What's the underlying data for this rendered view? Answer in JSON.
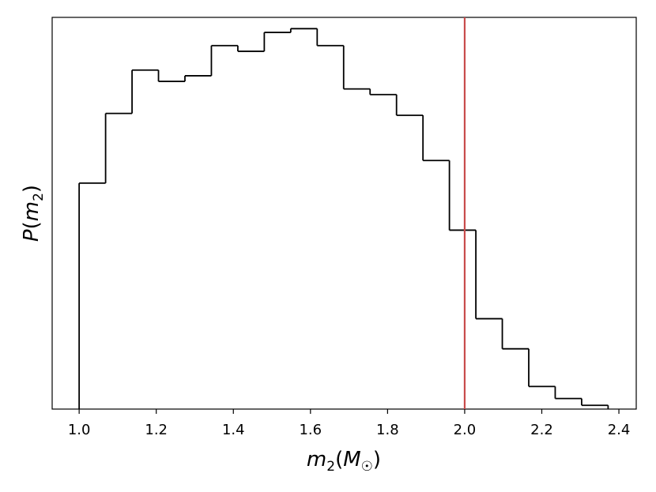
{
  "chart_data": {
    "type": "histogram",
    "xlabel": "m2(M☉)",
    "ylabel": "P(m2)",
    "xlim": [
      0.93,
      2.445
    ],
    "ylim": [
      0,
      1.04
    ],
    "x_ticks": [
      "1.0",
      "1.2",
      "1.4",
      "1.6",
      "1.8",
      "2.0",
      "2.2",
      "2.4"
    ],
    "y_ticks": [],
    "grid": false,
    "bin_edges": [
      1.0,
      1.0686,
      1.1372,
      1.2058,
      1.2744,
      1.343,
      1.4116,
      1.4802,
      1.5488,
      1.6174,
      1.686,
      1.7546,
      1.8232,
      1.8918,
      1.9604,
      2.029,
      2.0976,
      2.1662,
      2.2348,
      2.3034,
      2.372
    ],
    "bin_heights": [
      0.6,
      0.785,
      0.9,
      0.87,
      0.885,
      0.965,
      0.95,
      1.0,
      1.01,
      0.965,
      0.85,
      0.835,
      0.78,
      0.66,
      0.475,
      0.24,
      0.16,
      0.06,
      0.028,
      0.01
    ],
    "vline": {
      "x": 2.0,
      "color": "#c84b4b"
    },
    "line_color": "#000000"
  },
  "labels": {
    "x_main": "m",
    "x_sub": "2",
    "x_open": "(",
    "x_M": "M",
    "x_sun": "☉",
    "x_close": ")",
    "y_main": "P",
    "y_open": "(",
    "y_m": "m",
    "y_sub": "2",
    "y_close": ")"
  }
}
